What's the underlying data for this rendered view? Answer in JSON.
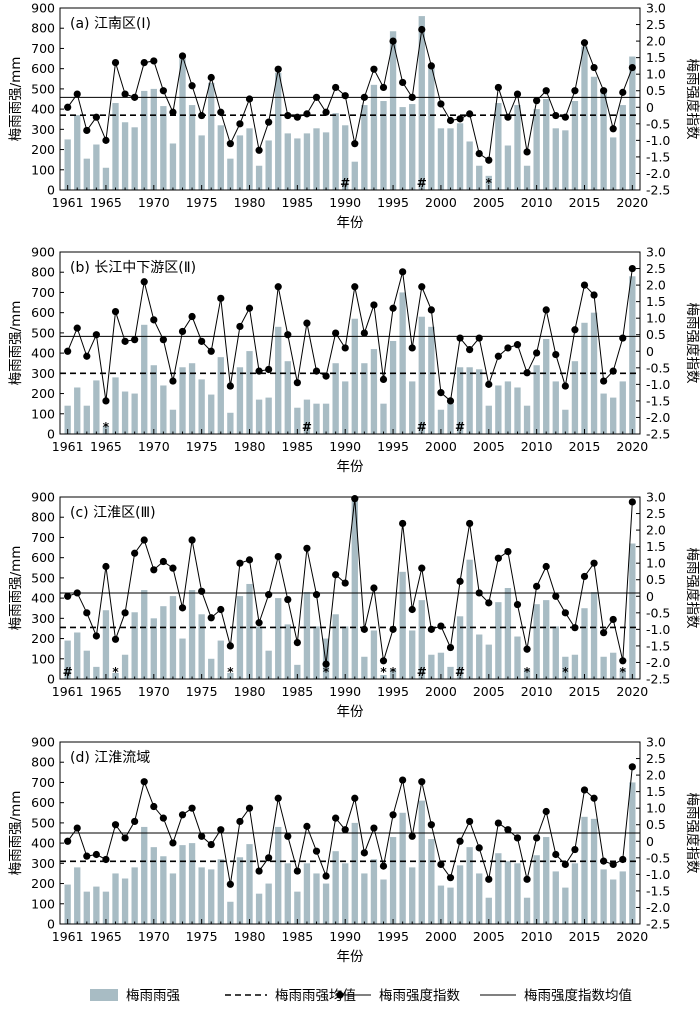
{
  "chart_data": [
    {
      "type": "bar",
      "panel_label": "(a) 江南区(Ⅰ)",
      "xlabel": "年份",
      "ylabel": "梅雨雨强/mm",
      "y2label": "梅雨强度指数",
      "ylim": [
        0,
        900
      ],
      "y2lim": [
        -2.5,
        3.0
      ],
      "y_ticks": [
        0,
        100,
        200,
        300,
        400,
        500,
        600,
        700,
        800,
        900
      ],
      "y2_ticks": [
        "3.0",
        "2.5",
        "2.0",
        "1.5",
        "1.0",
        "0.5",
        "0",
        "-0.5",
        "-1.0",
        "-1.5",
        "-2.0",
        "-2.5"
      ],
      "x_ticks": [
        1961,
        1965,
        1970,
        1975,
        1980,
        1985,
        1990,
        1995,
        2000,
        2005,
        2010,
        2015,
        2020
      ],
      "years": [
        1961,
        1962,
        1963,
        1964,
        1965,
        1966,
        1967,
        1968,
        1969,
        1970,
        1971,
        1972,
        1973,
        1974,
        1975,
        1976,
        1977,
        1978,
        1979,
        1980,
        1981,
        1982,
        1983,
        1984,
        1985,
        1986,
        1987,
        1988,
        1989,
        1990,
        1991,
        1992,
        1993,
        1994,
        1995,
        1996,
        1997,
        1998,
        1999,
        2000,
        2001,
        2002,
        2003,
        2004,
        2005,
        2006,
        2007,
        2008,
        2009,
        2010,
        2011,
        2012,
        2013,
        2014,
        2015,
        2016,
        2017,
        2018,
        2019,
        2020
      ],
      "series": [
        {
          "name": "梅雨雨强",
          "type": "bar",
          "values": [
            250,
            370,
            155,
            225,
            110,
            430,
            335,
            310,
            490,
            500,
            415,
            230,
            650,
            420,
            270,
            530,
            320,
            155,
            270,
            305,
            120,
            245,
            580,
            280,
            255,
            280,
            305,
            285,
            380,
            320,
            140,
            420,
            520,
            440,
            785,
            410,
            425,
            860,
            620,
            305,
            305,
            330,
            240,
            120,
            70,
            430,
            220,
            420,
            120,
            400,
            450,
            305,
            295,
            440,
            710,
            560,
            500,
            260,
            420,
            660
          ]
        },
        {
          "name": "梅雨强度指数",
          "type": "line",
          "values": [
            0.0,
            0.4,
            -0.7,
            -0.3,
            -1.0,
            1.35,
            0.4,
            0.3,
            1.35,
            1.4,
            0.5,
            -0.15,
            1.55,
            0.65,
            -0.25,
            0.9,
            -0.15,
            -1.1,
            -0.5,
            0.25,
            -1.3,
            -0.45,
            1.15,
            -0.25,
            -0.3,
            -0.2,
            0.3,
            -0.15,
            0.6,
            0.35,
            -1.1,
            0.3,
            1.15,
            0.6,
            2.0,
            0.75,
            0.3,
            2.35,
            1.25,
            0.1,
            -0.4,
            -0.35,
            -0.2,
            -1.4,
            -1.6,
            0.6,
            -0.3,
            0.4,
            -1.35,
            0.2,
            0.5,
            -0.25,
            -0.3,
            0.5,
            1.95,
            1.2,
            0.5,
            -0.65,
            0.45,
            1.2
          ]
        }
      ],
      "bar_mean": 370,
      "index_mean": 0.3,
      "markers": [
        {
          "year": 1990,
          "symbol": "#"
        },
        {
          "year": 1998,
          "symbol": "#"
        },
        {
          "year": 2005,
          "symbol": "*"
        }
      ]
    },
    {
      "type": "bar",
      "panel_label": "(b) 长江中下游区(Ⅱ)",
      "xlabel": "年份",
      "ylabel": "梅雨雨强/mm",
      "y2label": "梅雨强度指数",
      "ylim": [
        0,
        900
      ],
      "y2lim": [
        -2.5,
        3.0
      ],
      "y_ticks": [
        0,
        100,
        200,
        300,
        400,
        500,
        600,
        700,
        800,
        900
      ],
      "y2_ticks": [
        "3.0",
        "2.5",
        "2.0",
        "1.5",
        "1.0",
        "0.5",
        "0",
        "-0.5",
        "-1.0",
        "-1.5",
        "-2.0",
        "-2.5"
      ],
      "x_ticks": [
        1961,
        1965,
        1970,
        1975,
        1980,
        1985,
        1990,
        1995,
        2000,
        2005,
        2010,
        2015,
        2020
      ],
      "years": [
        1961,
        1962,
        1963,
        1964,
        1965,
        1966,
        1967,
        1968,
        1969,
        1970,
        1971,
        1972,
        1973,
        1974,
        1975,
        1976,
        1977,
        1978,
        1979,
        1980,
        1981,
        1982,
        1983,
        1984,
        1985,
        1986,
        1987,
        1988,
        1989,
        1990,
        1991,
        1992,
        1993,
        1994,
        1995,
        1996,
        1997,
        1998,
        1999,
        2000,
        2001,
        2002,
        2003,
        2004,
        2005,
        2006,
        2007,
        2008,
        2009,
        2010,
        2011,
        2012,
        2013,
        2014,
        2015,
        2016,
        2017,
        2018,
        2019,
        2020
      ],
      "series": [
        {
          "name": "梅雨雨强",
          "type": "bar",
          "values": [
            140,
            230,
            140,
            265,
            40,
            280,
            210,
            200,
            540,
            340,
            240,
            120,
            330,
            350,
            270,
            195,
            380,
            105,
            330,
            410,
            170,
            180,
            530,
            360,
            130,
            170,
            150,
            150,
            350,
            260,
            570,
            350,
            420,
            150,
            460,
            700,
            260,
            580,
            530,
            120,
            150,
            330,
            330,
            320,
            140,
            240,
            260,
            230,
            140,
            340,
            470,
            260,
            120,
            360,
            550,
            600,
            200,
            180,
            260,
            780
          ]
        },
        {
          "name": "梅雨强度指数",
          "type": "line",
          "values": [
            0.0,
            0.7,
            -0.15,
            0.5,
            -1.5,
            1.2,
            0.3,
            0.35,
            2.1,
            0.95,
            0.35,
            -0.9,
            0.6,
            1.05,
            0.3,
            0.0,
            1.6,
            -1.05,
            0.75,
            1.3,
            -0.6,
            -0.55,
            1.95,
            0.5,
            -0.95,
            0.85,
            -0.6,
            -0.75,
            0.55,
            0.1,
            1.95,
            0.55,
            1.4,
            -0.85,
            1.3,
            2.4,
            0.1,
            1.95,
            1.25,
            -1.25,
            -1.5,
            0.4,
            0.05,
            0.4,
            -1.0,
            -0.15,
            0.1,
            0.2,
            -0.65,
            -0.05,
            1.25,
            -0.1,
            -1.05,
            0.65,
            2.0,
            1.7,
            -0.9,
            -0.6,
            0.4,
            2.5
          ]
        }
      ],
      "bar_mean": 300,
      "index_mean": 0.45,
      "markers": [
        {
          "year": 1965,
          "symbol": "*"
        },
        {
          "year": 1986,
          "symbol": "#"
        },
        {
          "year": 1998,
          "symbol": "#"
        },
        {
          "year": 2002,
          "symbol": "#"
        }
      ]
    },
    {
      "type": "bar",
      "panel_label": "(c) 江淮区(Ⅲ)",
      "xlabel": "年份",
      "ylabel": "梅雨雨强/mm",
      "y2label": "梅雨强度指数",
      "ylim": [
        0,
        900
      ],
      "y2lim": [
        -2.5,
        3.0
      ],
      "y_ticks": [
        0,
        100,
        200,
        300,
        400,
        500,
        600,
        700,
        800,
        900
      ],
      "y2_ticks": [
        "3.0",
        "2.5",
        "2.0",
        "1.5",
        "1.0",
        "0.5",
        "0",
        "-0.5",
        "-1.0",
        "-1.5",
        "-2.0",
        "-2.5"
      ],
      "x_ticks": [
        1961,
        1965,
        1970,
        1975,
        1980,
        1985,
        1990,
        1995,
        2000,
        2005,
        2010,
        2015,
        2020
      ],
      "years": [
        1961,
        1962,
        1963,
        1964,
        1965,
        1966,
        1967,
        1968,
        1969,
        1970,
        1971,
        1972,
        1973,
        1974,
        1975,
        1976,
        1977,
        1978,
        1979,
        1980,
        1981,
        1982,
        1983,
        1984,
        1985,
        1986,
        1987,
        1988,
        1989,
        1990,
        1991,
        1992,
        1993,
        1994,
        1995,
        1996,
        1997,
        1998,
        1999,
        2000,
        2001,
        2002,
        2003,
        2004,
        2005,
        2006,
        2007,
        2008,
        2009,
        2010,
        2011,
        2012,
        2013,
        2014,
        2015,
        2016,
        2017,
        2018,
        2019,
        2020
      ],
      "series": [
        {
          "name": "梅雨雨强",
          "type": "bar",
          "values": [
            190,
            230,
            140,
            60,
            340,
            30,
            120,
            330,
            440,
            300,
            360,
            410,
            200,
            440,
            320,
            100,
            190,
            30,
            410,
            470,
            260,
            140,
            400,
            270,
            70,
            430,
            260,
            200,
            320,
            260,
            880,
            110,
            240,
            20,
            50,
            530,
            240,
            390,
            120,
            130,
            60,
            310,
            590,
            220,
            170,
            380,
            450,
            210,
            50,
            370,
            390,
            260,
            110,
            120,
            350,
            430,
            110,
            130,
            50,
            670
          ]
        },
        {
          "name": "梅雨强度指数",
          "type": "line",
          "values": [
            0.0,
            0.1,
            -0.5,
            -1.2,
            0.9,
            -1.3,
            -0.5,
            1.3,
            1.7,
            0.8,
            1.05,
            0.85,
            -0.35,
            1.7,
            0.15,
            -0.65,
            -0.4,
            -1.5,
            1.0,
            1.1,
            -0.8,
            0.05,
            1.2,
            -0.1,
            -1.4,
            1.45,
            0.05,
            -2.05,
            0.65,
            0.4,
            2.95,
            -1.0,
            0.25,
            -1.95,
            -1.0,
            2.2,
            -0.4,
            0.85,
            -1.0,
            -0.9,
            -1.55,
            0.45,
            2.2,
            0.1,
            -0.2,
            1.15,
            1.35,
            -0.25,
            -1.6,
            0.3,
            0.9,
            0.0,
            -0.5,
            -0.95,
            0.6,
            1.0,
            -1.1,
            -0.7,
            -1.95,
            2.85
          ]
        }
      ],
      "bar_mean": 255,
      "index_mean": 0.1,
      "markers": [
        {
          "year": 1961,
          "symbol": "#"
        },
        {
          "year": 1966,
          "symbol": "*"
        },
        {
          "year": 1978,
          "symbol": "*"
        },
        {
          "year": 1988,
          "symbol": "*"
        },
        {
          "year": 1994,
          "symbol": "*"
        },
        {
          "year": 1995,
          "symbol": "*"
        },
        {
          "year": 1998,
          "symbol": "#"
        },
        {
          "year": 2002,
          "symbol": "#"
        },
        {
          "year": 2009,
          "symbol": "*"
        },
        {
          "year": 2013,
          "symbol": "*"
        },
        {
          "year": 2019,
          "symbol": "*"
        }
      ]
    },
    {
      "type": "bar",
      "panel_label": "(d) 江淮流域",
      "xlabel": "年份",
      "ylabel": "梅雨雨强/mm",
      "y2label": "梅雨强度指数",
      "ylim": [
        0,
        900
      ],
      "y2lim": [
        -2.5,
        3.0
      ],
      "y_ticks": [
        0,
        100,
        200,
        300,
        400,
        500,
        600,
        700,
        800,
        900
      ],
      "y2_ticks": [
        "3.0",
        "2.5",
        "2.0",
        "1.5",
        "1.0",
        "0.5",
        "0",
        "-0.5",
        "-1.0",
        "-1.5",
        "-2.0",
        "-2.5"
      ],
      "x_ticks": [
        1961,
        1965,
        1970,
        1975,
        1980,
        1985,
        1990,
        1995,
        2000,
        2005,
        2010,
        2015,
        2020
      ],
      "years": [
        1961,
        1962,
        1963,
        1964,
        1965,
        1966,
        1967,
        1968,
        1969,
        1970,
        1971,
        1972,
        1973,
        1974,
        1975,
        1976,
        1977,
        1978,
        1979,
        1980,
        1981,
        1982,
        1983,
        1984,
        1985,
        1986,
        1987,
        1988,
        1989,
        1990,
        1991,
        1992,
        1993,
        1994,
        1995,
        1996,
        1997,
        1998,
        1999,
        2000,
        2001,
        2002,
        2003,
        2004,
        2005,
        2006,
        2007,
        2008,
        2009,
        2010,
        2011,
        2012,
        2013,
        2014,
        2015,
        2016,
        2017,
        2018,
        2019,
        2020
      ],
      "series": [
        {
          "name": "梅雨雨强",
          "type": "bar",
          "values": [
            195,
            280,
            160,
            185,
            160,
            250,
            225,
            280,
            480,
            380,
            335,
            250,
            390,
            400,
            280,
            270,
            320,
            110,
            330,
            395,
            150,
            200,
            480,
            300,
            160,
            300,
            250,
            200,
            360,
            300,
            500,
            250,
            320,
            220,
            430,
            550,
            280,
            610,
            420,
            190,
            180,
            290,
            380,
            250,
            130,
            350,
            310,
            300,
            130,
            340,
            430,
            260,
            180,
            300,
            530,
            520,
            270,
            220,
            260,
            700
          ]
        },
        {
          "name": "梅雨强度指数",
          "type": "line",
          "values": [
            0.0,
            0.4,
            -0.45,
            -0.4,
            -0.55,
            0.5,
            0.1,
            0.6,
            1.8,
            1.05,
            0.7,
            -0.05,
            0.8,
            1.0,
            0.15,
            -0.1,
            0.35,
            -1.3,
            0.6,
            1.0,
            -0.9,
            -0.5,
            1.3,
            0.15,
            -0.9,
            0.45,
            -0.3,
            -1.05,
            0.7,
            0.35,
            1.3,
            -0.35,
            0.4,
            -0.75,
            0.8,
            1.85,
            0.15,
            1.8,
            0.5,
            -0.7,
            -1.1,
            0.0,
            0.6,
            -0.2,
            -1.15,
            0.55,
            0.35,
            0.1,
            -1.15,
            0.1,
            0.9,
            -0.4,
            -0.7,
            -0.25,
            1.55,
            1.3,
            -0.6,
            -0.7,
            -0.55,
            2.25
          ]
        }
      ],
      "bar_mean": 310,
      "index_mean": 0.25,
      "markers": []
    }
  ],
  "legend": {
    "items": [
      {
        "kind": "bar",
        "label": "梅雨雨强"
      },
      {
        "kind": "dashed",
        "label": "梅雨雨强均值"
      },
      {
        "kind": "dotline",
        "label": "梅雨强度指数"
      },
      {
        "kind": "solid",
        "label": "梅雨强度指数均值"
      }
    ]
  },
  "colors": {
    "bar": "#a8bcc4",
    "line": "#000000",
    "axis": "#000000",
    "background": "#ffffff"
  }
}
